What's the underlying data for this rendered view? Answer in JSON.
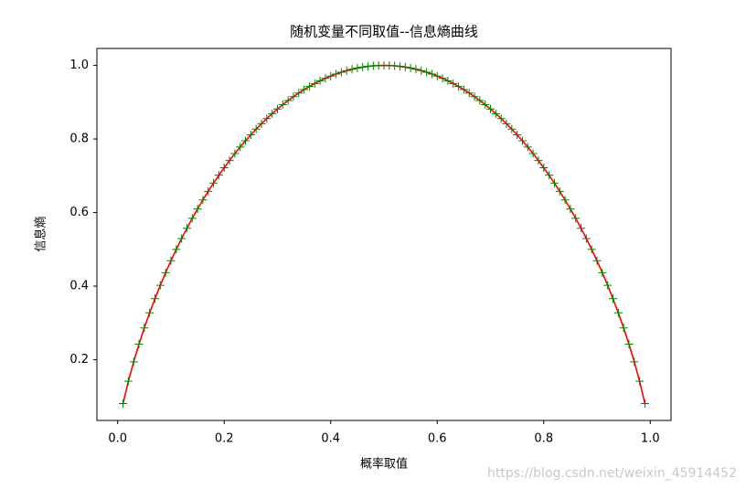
{
  "chart_data": {
    "type": "line",
    "title": "随机变量不同取值--信息熵曲线",
    "xlabel": "概率取值",
    "ylabel": "信息熵",
    "watermark": "https://blog.csdn.net/weixin_45914452",
    "x": [
      0.01,
      0.02,
      0.03,
      0.04,
      0.05,
      0.06,
      0.07,
      0.08,
      0.09,
      0.1,
      0.11,
      0.12,
      0.13,
      0.14,
      0.15,
      0.16,
      0.17,
      0.18,
      0.19,
      0.2,
      0.21,
      0.22,
      0.23,
      0.24,
      0.25,
      0.26,
      0.27,
      0.28,
      0.29,
      0.3,
      0.31,
      0.32,
      0.33,
      0.34,
      0.35,
      0.36,
      0.37,
      0.38,
      0.39,
      0.4,
      0.41,
      0.42,
      0.43,
      0.44,
      0.45,
      0.46,
      0.47,
      0.48,
      0.49,
      0.5,
      0.51,
      0.52,
      0.53,
      0.54,
      0.55,
      0.56,
      0.57,
      0.58,
      0.59,
      0.6,
      0.61,
      0.62,
      0.63,
      0.64,
      0.65,
      0.66,
      0.67,
      0.68,
      0.69,
      0.7,
      0.71,
      0.72,
      0.73,
      0.74,
      0.75,
      0.76,
      0.77,
      0.78,
      0.79,
      0.8,
      0.81,
      0.82,
      0.83,
      0.84,
      0.85,
      0.86,
      0.87,
      0.88,
      0.89,
      0.9,
      0.91,
      0.92,
      0.93,
      0.94,
      0.95,
      0.96,
      0.97,
      0.98,
      0.99
    ],
    "series": [
      {
        "color": "#ff0000",
        "marker": "+",
        "marker_color": "#008000",
        "values": [
          0.0808,
          0.1414,
          0.1944,
          0.2423,
          0.2864,
          0.3274,
          0.3659,
          0.4022,
          0.4365,
          0.469,
          0.4999,
          0.5294,
          0.5574,
          0.5842,
          0.6098,
          0.6343,
          0.6577,
          0.6801,
          0.7015,
          0.7219,
          0.7415,
          0.7602,
          0.778,
          0.795,
          0.8113,
          0.8267,
          0.8415,
          0.8555,
          0.8687,
          0.8813,
          0.8932,
          0.9044,
          0.9149,
          0.9248,
          0.9341,
          0.9427,
          0.9507,
          0.958,
          0.9648,
          0.971,
          0.9765,
          0.9815,
          0.9858,
          0.9896,
          0.9928,
          0.9954,
          0.9974,
          0.9988,
          0.9997,
          1.0,
          0.9997,
          0.9988,
          0.9974,
          0.9954,
          0.9928,
          0.9896,
          0.9858,
          0.9815,
          0.9765,
          0.971,
          0.9648,
          0.958,
          0.9507,
          0.9427,
          0.9341,
          0.9248,
          0.9149,
          0.9044,
          0.8932,
          0.8813,
          0.8687,
          0.8555,
          0.8415,
          0.8267,
          0.8113,
          0.795,
          0.778,
          0.7602,
          0.7415,
          0.7219,
          0.7015,
          0.6801,
          0.6577,
          0.6343,
          0.6098,
          0.5842,
          0.5574,
          0.5294,
          0.4999,
          0.469,
          0.4365,
          0.4022,
          0.3659,
          0.3274,
          0.2864,
          0.2423,
          0.1944,
          0.1414,
          0.0808
        ]
      }
    ],
    "xlim": [
      -0.039,
      1.039
    ],
    "ylim": [
      0.035,
      1.046
    ],
    "xticks": [
      {
        "value": 0,
        "label": "0.0"
      },
      0.2,
      0.4,
      0.6,
      0.8,
      {
        "value": 1,
        "label": "1.0"
      }
    ],
    "yticks": [
      0.2,
      0.4,
      0.6,
      0.8,
      {
        "value": 1,
        "label": "1.0"
      }
    ],
    "grid": false
  }
}
